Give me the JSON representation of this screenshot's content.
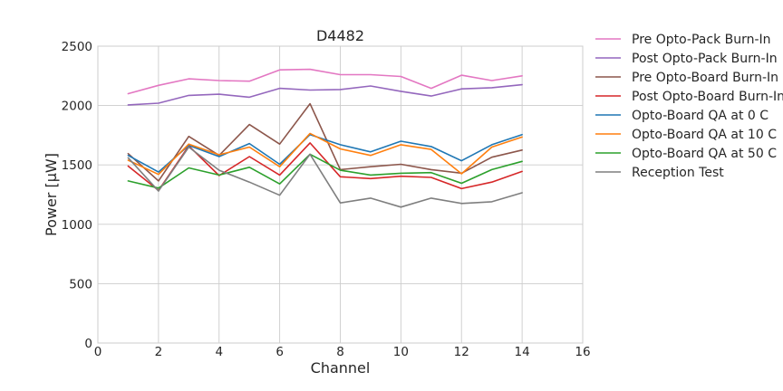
{
  "chart_data": {
    "type": "line",
    "title": "D4482",
    "xlabel": "Channel",
    "ylabel": "Power [μW]",
    "xlim": [
      0,
      16
    ],
    "ylim": [
      0,
      2500
    ],
    "xticks": [
      0,
      2,
      4,
      6,
      8,
      10,
      12,
      14,
      16
    ],
    "yticks": [
      0,
      500,
      1000,
      1500,
      2000,
      2500
    ],
    "grid": true,
    "legend_position": "outside-right",
    "x": [
      1,
      2,
      3,
      4,
      5,
      6,
      7,
      8,
      9,
      10,
      11,
      12,
      13,
      14
    ],
    "series": [
      {
        "name": "Pre Opto-Pack Burn-In",
        "color": "#e377c2",
        "values": [
          2100,
          2170,
          2225,
          2210,
          2205,
          2300,
          2305,
          2260,
          2260,
          2245,
          2145,
          2255,
          2210,
          2250
        ]
      },
      {
        "name": "Post Opto-Pack Burn-In",
        "color": "#9467bd",
        "values": [
          2005,
          2020,
          2085,
          2095,
          2070,
          2145,
          2130,
          2135,
          2165,
          2120,
          2080,
          2140,
          2150,
          2175
        ]
      },
      {
        "name": "Pre Opto-Board Burn-In",
        "color": "#8c564b",
        "values": [
          1595,
          1365,
          1740,
          1580,
          1840,
          1675,
          2015,
          1460,
          1485,
          1505,
          1460,
          1430,
          1565,
          1625
        ]
      },
      {
        "name": "Post Opto-Board Burn-In",
        "color": "#d62728",
        "values": [
          1490,
          1285,
          1660,
          1410,
          1570,
          1415,
          1685,
          1400,
          1385,
          1405,
          1395,
          1300,
          1355,
          1445
        ]
      },
      {
        "name": "Opto-Board QA at 0 C",
        "color": "#1f77b4",
        "values": [
          1580,
          1440,
          1665,
          1570,
          1680,
          1505,
          1755,
          1670,
          1610,
          1700,
          1655,
          1535,
          1670,
          1755
        ]
      },
      {
        "name": "Opto-Board QA at 10 C",
        "color": "#ff7f0e",
        "values": [
          1540,
          1420,
          1675,
          1585,
          1650,
          1485,
          1765,
          1635,
          1580,
          1670,
          1630,
          1425,
          1650,
          1735
        ]
      },
      {
        "name": "Opto-Board QA at 50 C",
        "color": "#2ca02c",
        "values": [
          1365,
          1305,
          1475,
          1415,
          1480,
          1340,
          1590,
          1455,
          1415,
          1430,
          1435,
          1345,
          1460,
          1530
        ]
      },
      {
        "name": "Reception Test",
        "color": "#7f7f7f",
        "values": [
          1560,
          1280,
          1650,
          1455,
          1355,
          1245,
          1590,
          1180,
          1220,
          1145,
          1220,
          1175,
          1190,
          1265
        ]
      }
    ]
  }
}
